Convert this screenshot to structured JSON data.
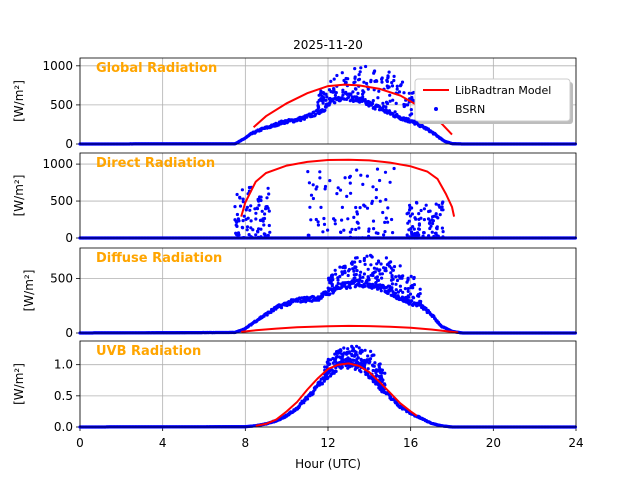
{
  "figure": {
    "title": "2025-11-20",
    "xlabel": "Hour (UTC)",
    "xticks": [
      0,
      4,
      8,
      12,
      16,
      20,
      24
    ],
    "colors": {
      "model": "#ff0000",
      "obs": "#0000ff",
      "panel_label": "#ffa500",
      "grid": "#b0b0b0"
    }
  },
  "legend": {
    "model_label": "LibRadtran Model",
    "obs_label": "BSRN",
    "placement": "top-right"
  },
  "chart_data": [
    {
      "type": "line",
      "title": "Global Radiation",
      "ylabel": "[W/m²]",
      "xlim": [
        0,
        24
      ],
      "ylim": [
        0,
        1100
      ],
      "yticks": [
        0,
        500,
        1000
      ],
      "series": [
        {
          "name": "LibRadtran Model",
          "points": [
            [
              8.4,
              215
            ],
            [
              9,
              355
            ],
            [
              10,
              520
            ],
            [
              11,
              650
            ],
            [
              12,
              740
            ],
            [
              12.8,
              760
            ],
            [
              13.5,
              750
            ],
            [
              14.5,
              705
            ],
            [
              15.5,
              620
            ],
            [
              16.5,
              470
            ],
            [
              17.2,
              330
            ],
            [
              17.5,
              260
            ],
            [
              18,
              120
            ]
          ]
        },
        {
          "name": "BSRN",
          "envelope": [
            [
              0,
              0
            ],
            [
              7.5,
              2
            ],
            [
              7.9,
              60
            ],
            [
              8.3,
              130
            ],
            [
              8.8,
              190
            ],
            [
              9.3,
              230
            ],
            [
              9.8,
              280
            ],
            [
              10.3,
              300
            ],
            [
              10.8,
              330
            ],
            [
              11.3,
              380
            ],
            [
              11.8,
              450
            ],
            [
              12.3,
              560
            ],
            [
              12.8,
              620
            ],
            [
              13.3,
              580
            ],
            [
              13.8,
              530
            ],
            [
              14.3,
              480
            ],
            [
              14.8,
              420
            ],
            [
              15.3,
              360
            ],
            [
              15.8,
              310
            ],
            [
              16.3,
              260
            ],
            [
              16.8,
              190
            ],
            [
              17.2,
              120
            ],
            [
              17.6,
              40
            ],
            [
              18,
              5
            ],
            [
              18.5,
              0
            ],
            [
              24,
              0
            ]
          ],
          "scatter_range": [
            11.5,
            16.5
          ],
          "scatter_max": 1000
        }
      ]
    },
    {
      "type": "line",
      "title": "Direct Radiation",
      "ylabel": "[W/m²]",
      "xlim": [
        0,
        24
      ],
      "ylim": [
        0,
        1150
      ],
      "yticks": [
        0,
        500,
        1000
      ],
      "series": [
        {
          "name": "LibRadtran Model",
          "points": [
            [
              7.8,
              290
            ],
            [
              8,
              480
            ],
            [
              8.5,
              760
            ],
            [
              9,
              880
            ],
            [
              10,
              980
            ],
            [
              11,
              1030
            ],
            [
              12,
              1055
            ],
            [
              13,
              1060
            ],
            [
              14,
              1050
            ],
            [
              15,
              1020
            ],
            [
              16,
              970
            ],
            [
              16.8,
              900
            ],
            [
              17.3,
              800
            ],
            [
              17.7,
              600
            ],
            [
              18,
              420
            ],
            [
              18.1,
              290
            ]
          ]
        },
        {
          "name": "BSRN",
          "envelope": [
            [
              0,
              0
            ],
            [
              24,
              0
            ]
          ],
          "scatter_clusters": [
            [
              7.5,
              9.2,
              700
            ],
            [
              11.0,
              15.2,
              950
            ],
            [
              15.8,
              17.6,
              500
            ]
          ]
        }
      ]
    },
    {
      "type": "line",
      "title": "Diffuse Radiation",
      "ylabel": "[W/m²]",
      "xlim": [
        0,
        24
      ],
      "ylim": [
        0,
        780
      ],
      "yticks": [
        0,
        500
      ],
      "series": [
        {
          "name": "LibRadtran Model",
          "points": [
            [
              7.8,
              10
            ],
            [
              8.5,
              25
            ],
            [
              9.5,
              40
            ],
            [
              10.5,
              52
            ],
            [
              12,
              62
            ],
            [
              13,
              65
            ],
            [
              14,
              63
            ],
            [
              15,
              58
            ],
            [
              16,
              48
            ],
            [
              17,
              32
            ],
            [
              17.8,
              15
            ],
            [
              18.3,
              5
            ]
          ]
        },
        {
          "name": "BSRN",
          "envelope": [
            [
              0,
              0
            ],
            [
              7.5,
              5
            ],
            [
              8,
              40
            ],
            [
              8.5,
              110
            ],
            [
              9,
              170
            ],
            [
              9.5,
              230
            ],
            [
              10,
              270
            ],
            [
              10.5,
              300
            ],
            [
              11,
              310
            ],
            [
              11.5,
              320
            ],
            [
              12,
              370
            ],
            [
              12.5,
              420
            ],
            [
              13,
              440
            ],
            [
              13.5,
              460
            ],
            [
              14,
              450
            ],
            [
              14.5,
              420
            ],
            [
              15,
              380
            ],
            [
              15.5,
              320
            ],
            [
              16,
              280
            ],
            [
              16.5,
              250
            ],
            [
              17,
              170
            ],
            [
              17.5,
              60
            ],
            [
              18,
              15
            ],
            [
              18.5,
              0
            ],
            [
              24,
              0
            ]
          ],
          "scatter_range": [
            12.0,
            16.5
          ],
          "scatter_max": 720
        }
      ]
    },
    {
      "type": "line",
      "title": "UVB Radiation",
      "ylabel": "[W/m²]",
      "xlim": [
        0,
        24
      ],
      "ylim": [
        0,
        1.38
      ],
      "yticks": [
        0,
        0.5,
        1.0
      ],
      "ytick_labels": [
        "0.0",
        "0.5",
        "1.0"
      ],
      "series": [
        {
          "name": "LibRadtran Model",
          "points": [
            [
              8.5,
              0.02
            ],
            [
              9,
              0.05
            ],
            [
              9.5,
              0.12
            ],
            [
              10,
              0.25
            ],
            [
              10.5,
              0.4
            ],
            [
              11,
              0.6
            ],
            [
              11.5,
              0.78
            ],
            [
              12,
              0.93
            ],
            [
              12.5,
              1.0
            ],
            [
              13,
              1.02
            ],
            [
              13.5,
              0.98
            ],
            [
              14,
              0.88
            ],
            [
              14.5,
              0.72
            ],
            [
              15,
              0.55
            ],
            [
              15.5,
              0.38
            ],
            [
              16,
              0.25
            ],
            [
              16.3,
              0.18
            ]
          ]
        },
        {
          "name": "BSRN",
          "envelope": [
            [
              0,
              0
            ],
            [
              8,
              0.005
            ],
            [
              8.5,
              0.02
            ],
            [
              9,
              0.05
            ],
            [
              9.5,
              0.1
            ],
            [
              10,
              0.18
            ],
            [
              10.5,
              0.3
            ],
            [
              11,
              0.48
            ],
            [
              11.5,
              0.65
            ],
            [
              12,
              0.85
            ],
            [
              12.5,
              0.98
            ],
            [
              13,
              1.02
            ],
            [
              13.5,
              0.98
            ],
            [
              14,
              0.85
            ],
            [
              14.5,
              0.65
            ],
            [
              15,
              0.48
            ],
            [
              15.5,
              0.33
            ],
            [
              16,
              0.22
            ],
            [
              16.5,
              0.14
            ],
            [
              17,
              0.06
            ],
            [
              17.5,
              0.02
            ],
            [
              18,
              0
            ],
            [
              24,
              0
            ]
          ],
          "scatter_range": [
            11.8,
            14.8
          ],
          "scatter_max": 1.3
        }
      ]
    }
  ]
}
